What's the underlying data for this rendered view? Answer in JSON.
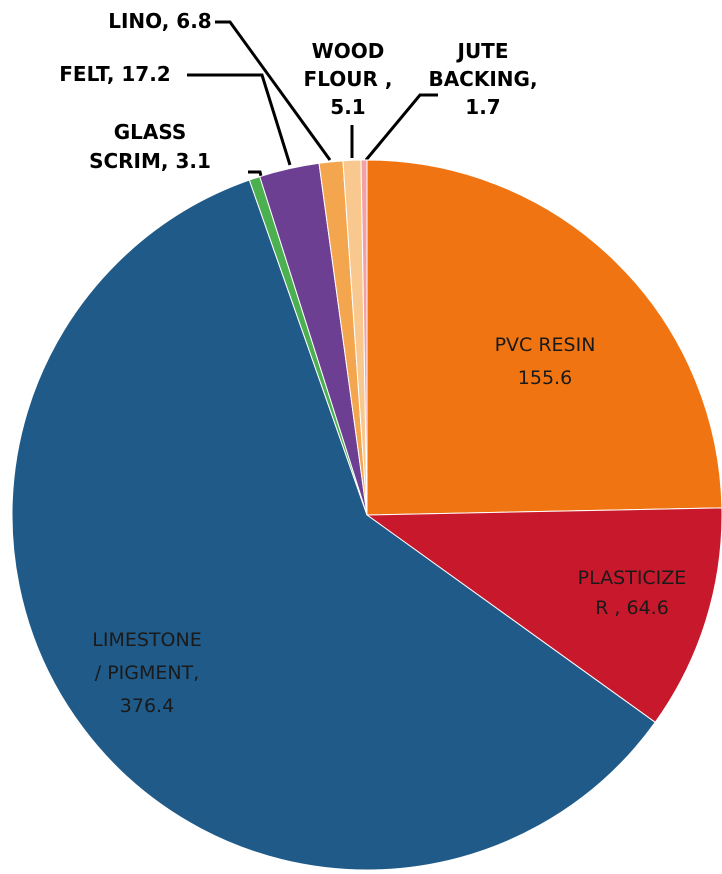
{
  "chart_data": {
    "type": "pie",
    "values": [
      155.6,
      64.6,
      376.4,
      3.1,
      17.2,
      6.8,
      5.1,
      1.7
    ],
    "labels": [
      [
        "PVC RESIN",
        "155.6"
      ],
      [
        "PLASTICIZE",
        "R , 64.6"
      ],
      [
        "LIMESTONE",
        "/ PIGMENT,",
        "376.4"
      ],
      [
        "GLASS",
        "SCRIM, 3.1"
      ],
      [
        "FELT, 17.2"
      ],
      [
        "LINO, 6.8"
      ],
      [
        "WOOD",
        "FLOUR ,",
        "5.1"
      ],
      [
        "JUTE",
        "BACKING,",
        "1.7"
      ]
    ],
    "colors": [
      "#f07412",
      "#c8182c",
      "#1f5a88",
      "#4caf50",
      "#6d3f93",
      "#f4a64e",
      "#f8c88e",
      "#f2a2a6"
    ]
  }
}
